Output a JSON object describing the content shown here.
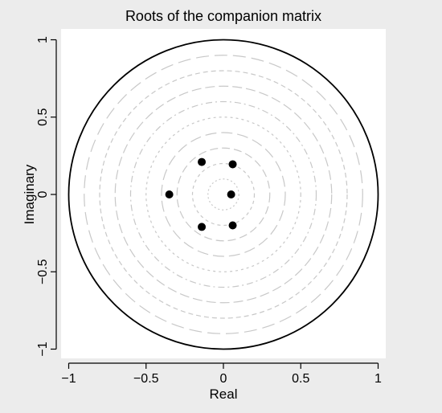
{
  "chart_data": {
    "type": "scatter",
    "title": "Roots of the companion matrix",
    "xlabel": "Real",
    "ylabel": "Imaginary",
    "xlim": [
      -1.05,
      1.05
    ],
    "ylim": [
      -1.05,
      1.05
    ],
    "x_ticks": [
      -1,
      -0.5,
      0,
      0.5,
      1
    ],
    "x_tick_labels": [
      "−1",
      "−0.5",
      "0",
      "0.5",
      "1"
    ],
    "y_ticks": [
      -1,
      -0.5,
      0,
      0.5,
      1
    ],
    "y_tick_labels": [
      "−1",
      "−0.5",
      "0",
      "0.5",
      "1"
    ],
    "grid": false,
    "legend": "none",
    "unit_circle_radius": 1,
    "reference_circle_radii": [
      0.1,
      0.2,
      0.3,
      0.4,
      0.5,
      0.6,
      0.7,
      0.8,
      0.9
    ],
    "points": [
      {
        "x": -0.14,
        "y": 0.21
      },
      {
        "x": 0.06,
        "y": 0.195
      },
      {
        "x": -0.35,
        "y": 0.0
      },
      {
        "x": 0.05,
        "y": 0.0
      },
      {
        "x": -0.14,
        "y": -0.21
      },
      {
        "x": 0.06,
        "y": -0.2
      }
    ],
    "colors": {
      "background": "#ffffff",
      "outer_background": "#ececec",
      "points": "#000000",
      "unit_circle": "#000000",
      "reference_circles": "#c8c8c8"
    }
  }
}
